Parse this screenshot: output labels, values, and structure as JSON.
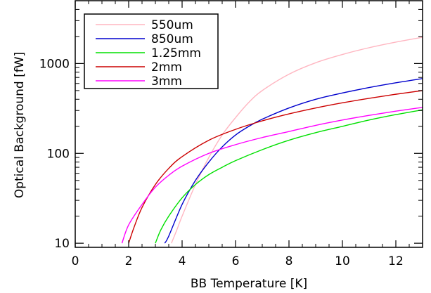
{
  "chart_data": {
    "type": "line",
    "title": "",
    "xlabel": "BB Temperature [K]",
    "ylabel": "Optical Background [fW]",
    "xlim": [
      0,
      13
    ],
    "ylim": [
      9,
      5000
    ],
    "yscale": "log",
    "grid": false,
    "legend_position": "top-left",
    "x_ticks": [
      0,
      2,
      4,
      6,
      8,
      10,
      12
    ],
    "x_tick_labels": [
      "0",
      "2",
      "4",
      "6",
      "8",
      "10",
      "12"
    ],
    "y_ticks": [
      10,
      100,
      1000
    ],
    "y_tick_labels": [
      "10",
      "100",
      "1000"
    ],
    "series": [
      {
        "name": "550um",
        "color": "#ffb6c1",
        "x": [
          3.6,
          3.8,
          4.0,
          4.5,
          5.0,
          5.5,
          6.0,
          6.5,
          7.0,
          8.0,
          9.0,
          10.0,
          11.0,
          12.0,
          13.0
        ],
        "y": [
          10,
          14,
          20,
          45,
          90,
          160,
          250,
          370,
          500,
          760,
          1020,
          1260,
          1500,
          1730,
          1960
        ]
      },
      {
        "name": "850um",
        "color": "#0000cd",
        "x": [
          3.35,
          3.5,
          4.0,
          4.5,
          5.0,
          5.5,
          6.0,
          6.5,
          7.0,
          8.0,
          9.0,
          10.0,
          11.0,
          12.0,
          13.0
        ],
        "y": [
          10,
          12,
          27,
          50,
          80,
          118,
          160,
          200,
          240,
          320,
          400,
          470,
          540,
          610,
          680
        ]
      },
      {
        "name": "1.25mm",
        "color": "#00e000",
        "x": [
          3.0,
          3.2,
          3.5,
          4.0,
          4.5,
          5.0,
          5.5,
          6.0,
          7.0,
          8.0,
          9.0,
          10.0,
          11.0,
          12.0,
          13.0
        ],
        "y": [
          10,
          14,
          20,
          32,
          45,
          58,
          70,
          83,
          110,
          140,
          170,
          200,
          235,
          270,
          305
        ]
      },
      {
        "name": "2mm",
        "color": "#cc0000",
        "x": [
          2.0,
          2.2,
          2.5,
          3.0,
          3.5,
          4.0,
          5.0,
          6.0,
          7.0,
          8.0,
          9.0,
          10.0,
          11.0,
          12.0,
          13.0
        ],
        "y": [
          10,
          15,
          25,
          45,
          68,
          92,
          140,
          185,
          230,
          275,
          320,
          365,
          410,
          455,
          500
        ]
      },
      {
        "name": "3mm",
        "color": "#ff00ff",
        "x": [
          1.75,
          2.0,
          2.5,
          3.0,
          3.5,
          4.0,
          5.0,
          6.0,
          7.0,
          8.0,
          9.0,
          10.0,
          11.0,
          12.0,
          13.0
        ],
        "y": [
          10,
          16,
          27,
          42,
          57,
          72,
          100,
          125,
          150,
          175,
          205,
          235,
          265,
          295,
          325
        ]
      }
    ]
  }
}
